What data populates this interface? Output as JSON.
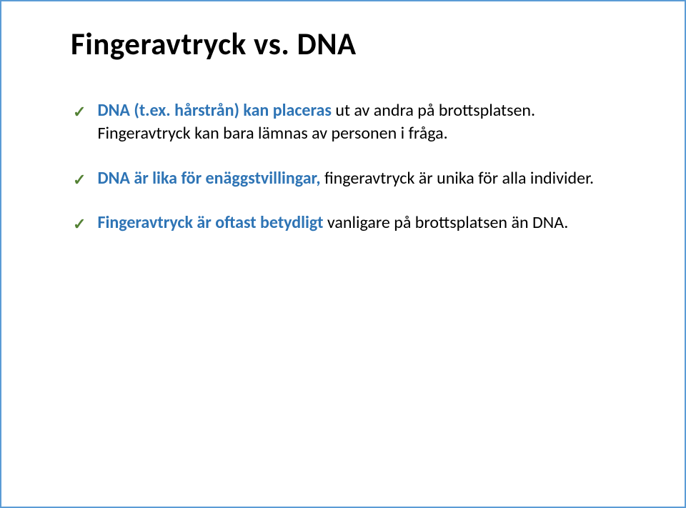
{
  "slide": {
    "title": "Fingeravtryck vs. DNA",
    "accent_color": "#5b9bd5",
    "check_color": "#548235",
    "strong_color": "#2e74b5",
    "text_color": "#000000",
    "background_color": "#ffffff",
    "title_fontsize": 43,
    "body_fontsize": 24,
    "items": [
      {
        "strong": "DNA (t.ex. hårstrån) kan placeras",
        "plain": " ut av andra på brottsplatsen. Fingeravtryck kan bara lämnas av personen i fråga."
      },
      {
        "strong": "DNA är lika för enäggstvillingar,",
        "plain": " fingeravtryck är unika för alla individer."
      },
      {
        "strong": "Fingeravtryck är oftast betydligt",
        "plain": " vanligare på brottsplatsen än DNA."
      }
    ]
  }
}
